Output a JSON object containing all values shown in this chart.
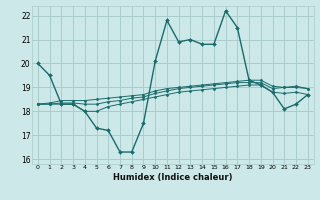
{
  "background_color": "#cce8e8",
  "grid_color": "#aacccc",
  "line_color": "#1a6b6b",
  "marker_color": "#1a6b6b",
  "xlabel": "Humidex (Indice chaleur)",
  "xlim": [
    -0.5,
    23.5
  ],
  "ylim": [
    15.8,
    22.4
  ],
  "yticks": [
    16,
    17,
    18,
    19,
    20,
    21,
    22
  ],
  "xtick_labels": [
    "0",
    "1",
    "2",
    "3",
    "4",
    "5",
    "6",
    "7",
    "8",
    "9",
    "10",
    "11",
    "12",
    "13",
    "14",
    "15",
    "16",
    "17",
    "18",
    "19",
    "20",
    "21",
    "22",
    "23"
  ],
  "series": [
    [
      20.0,
      19.5,
      18.3,
      18.3,
      18.0,
      17.3,
      17.2,
      16.3,
      16.3,
      17.5,
      20.1,
      21.8,
      20.9,
      21.0,
      20.8,
      20.8,
      22.2,
      21.5,
      19.3,
      19.1,
      18.8,
      18.1,
      18.3,
      18.7
    ],
    [
      18.3,
      18.3,
      18.3,
      18.3,
      18.0,
      18.0,
      18.2,
      18.3,
      18.4,
      18.5,
      18.6,
      18.7,
      18.8,
      18.85,
      18.9,
      18.95,
      19.0,
      19.05,
      19.1,
      19.1,
      18.8,
      18.75,
      18.8,
      18.7
    ],
    [
      18.3,
      18.3,
      18.35,
      18.35,
      18.3,
      18.3,
      18.4,
      18.45,
      18.55,
      18.6,
      18.75,
      18.85,
      18.95,
      19.0,
      19.05,
      19.1,
      19.15,
      19.2,
      19.2,
      19.2,
      18.95,
      19.0,
      19.0,
      18.95
    ],
    [
      18.3,
      18.35,
      18.45,
      18.45,
      18.45,
      18.5,
      18.55,
      18.6,
      18.65,
      18.7,
      18.85,
      18.95,
      19.0,
      19.05,
      19.1,
      19.15,
      19.2,
      19.25,
      19.3,
      19.3,
      19.05,
      19.0,
      19.05,
      18.95
    ]
  ]
}
